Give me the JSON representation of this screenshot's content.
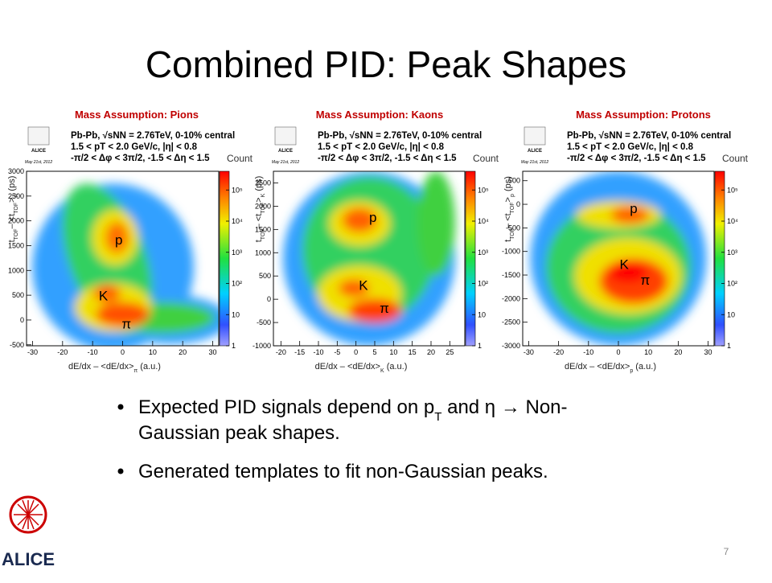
{
  "title": "Combined PID: Peak Shapes",
  "panels": [
    {
      "heading": "Mass Assumption:  Pions",
      "badge": [
        "ALICE",
        "May 21st, 2012"
      ],
      "info": [
        "Pb-Pb, √sNN = 2.76TeV, 0-10% central",
        "1.5 < pT < 2.0 GeV/c, |η| < 0.8",
        "-π/2 < Δφ < 3π/2, -1.5 < Δη < 1.5"
      ],
      "count_label": "Count",
      "y_label": [
        "t",
        "TOF",
        "– <t",
        "TOF",
        ">",
        "π",
        " (ps)"
      ],
      "x_label": [
        "dE/dx – <dE/dx>",
        "π",
        " (a.u.)"
      ],
      "xlim": [
        -32,
        32
      ],
      "xticks": [
        -30,
        -20,
        -10,
        0,
        10,
        20,
        30
      ],
      "ylim": [
        -520,
        3000
      ],
      "yticks": [
        -500,
        0,
        500,
        1000,
        1500,
        2000,
        2500,
        3000
      ],
      "zlim": [
        0,
        5.6
      ],
      "zticks": [
        {
          "value": 0,
          "label": "1"
        },
        {
          "value": 1,
          "label": "10"
        },
        {
          "value": 2,
          "label": "10²"
        },
        {
          "value": 3,
          "label": "10³"
        },
        {
          "value": 4,
          "label": "10⁴"
        },
        {
          "value": 5,
          "label": "10⁵"
        }
      ],
      "peaks": [
        "p",
        "K",
        "π"
      ]
    },
    {
      "heading": "Mass Assumption:  Kaons",
      "badge": [
        "ALICE",
        "May 21st, 2012"
      ],
      "info": [
        "Pb-Pb, √sNN = 2.76TeV, 0-10% central",
        "1.5 < pT < 2.0 GeV/c, |η| < 0.8",
        "-π/2 < Δφ < 3π/2, -1.5 < Δη < 1.5"
      ],
      "count_label": "Count",
      "y_label": [
        "t",
        "TOF",
        "– <t",
        "TOF",
        ">",
        "K",
        " (ps)"
      ],
      "x_label": [
        "dE/dx – <dE/dx>",
        "K",
        " (a.u.)"
      ],
      "xlim": [
        -22,
        29
      ],
      "xticks": [
        -20,
        -15,
        -10,
        -5,
        0,
        5,
        10,
        15,
        20,
        25
      ],
      "ylim": [
        -1000,
        2750
      ],
      "yticks": [
        -1000,
        -500,
        0,
        500,
        1000,
        1500,
        2000,
        2500
      ],
      "zlim": [
        0,
        5.6
      ],
      "zticks": [
        {
          "value": 0,
          "label": "1"
        },
        {
          "value": 1,
          "label": "10"
        },
        {
          "value": 2,
          "label": "10²"
        },
        {
          "value": 3,
          "label": "10³"
        },
        {
          "value": 4,
          "label": "10⁴"
        },
        {
          "value": 5,
          "label": "10⁵"
        }
      ],
      "peaks": [
        "p",
        "K",
        "π"
      ]
    },
    {
      "heading": "Mass Assumption:  Protons",
      "badge": [
        "ALICE",
        "May 21st, 2012"
      ],
      "info": [
        "Pb-Pb, √sNN = 2.76TeV, 0-10% central",
        "1.5 < pT < 2.0 GeV/c, |η| < 0.8",
        "-π/2 < Δφ < 3π/2, -1.5 < Δη < 1.5"
      ],
      "count_label": "Count",
      "y_label": [
        "t",
        "TOF",
        "– <t",
        "TOF",
        ">",
        "p",
        " (ps)"
      ],
      "x_label": [
        "dE/dx – <dE/dx>",
        "p",
        " (a.u.)"
      ],
      "xlim": [
        -32,
        32
      ],
      "xticks": [
        -30,
        -20,
        -10,
        0,
        10,
        20,
        30
      ],
      "ylim": [
        -3000,
        700
      ],
      "yticks": [
        -3000,
        -2500,
        -2000,
        -1500,
        -1000,
        -500,
        0,
        500
      ],
      "zlim": [
        0,
        5.6
      ],
      "zticks": [
        {
          "value": 0,
          "label": "1"
        },
        {
          "value": 1,
          "label": "10"
        },
        {
          "value": 2,
          "label": "10²"
        },
        {
          "value": 3,
          "label": "10³"
        },
        {
          "value": 4,
          "label": "10⁴"
        },
        {
          "value": 5,
          "label": "10⁵"
        }
      ],
      "peaks": [
        "p",
        "K",
        "π"
      ]
    }
  ],
  "bullets": [
    [
      [
        "Expected PID signals depend on p",
        "T",
        " and η  → Non-"
      ],
      [
        "Gaussian peak shapes."
      ]
    ],
    [
      [
        "Generated templates to fit non-Gaussian peaks."
      ]
    ]
  ],
  "logo": "ALICE",
  "page_number": "7"
}
